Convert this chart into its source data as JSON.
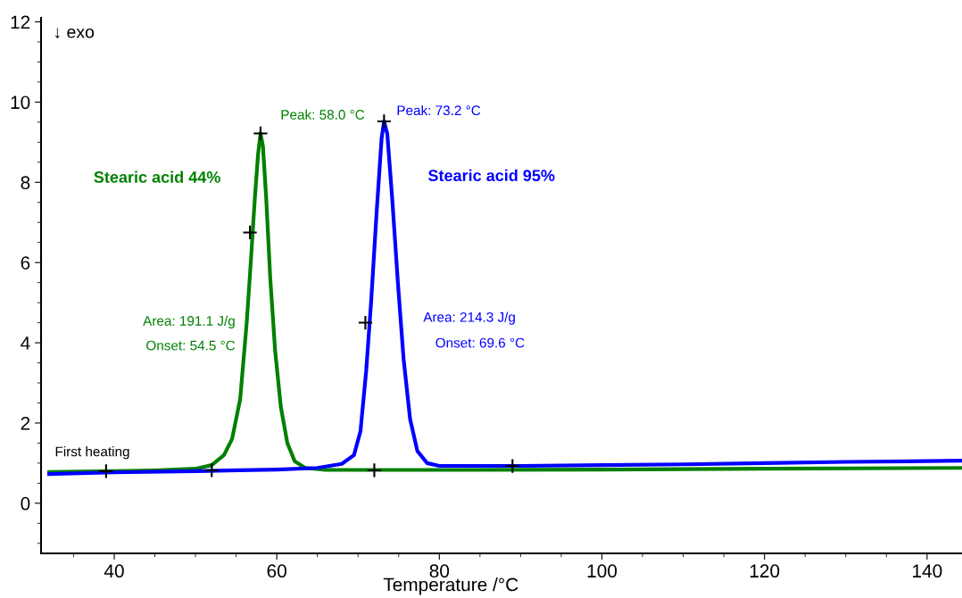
{
  "chart_data": {
    "type": "line",
    "xlabel": "Temperature /°C",
    "xlim": [
      31,
      144.3
    ],
    "ylim": [
      -1.25,
      12.1
    ],
    "xticks": [
      40,
      60,
      80,
      100,
      120,
      140
    ],
    "yticks": [
      0,
      2,
      4,
      6,
      8,
      10,
      12
    ],
    "grid": false,
    "legend": false,
    "series": [
      {
        "name": "Stearic acid 44%",
        "color": "#008000",
        "x": [
          32,
          40,
          45,
          50,
          52,
          53.5,
          54.5,
          55.5,
          56.3,
          56.8,
          57.3,
          57.7,
          58.0,
          58.3,
          58.7,
          59.2,
          59.8,
          60.5,
          61.3,
          62.2,
          63.5,
          66,
          80,
          100,
          120,
          144.3
        ],
        "values": [
          0.78,
          0.8,
          0.82,
          0.86,
          0.95,
          1.2,
          1.6,
          2.6,
          4.5,
          6.0,
          7.6,
          8.7,
          9.22,
          8.9,
          7.6,
          5.6,
          3.8,
          2.4,
          1.5,
          1.05,
          0.88,
          0.83,
          0.83,
          0.84,
          0.86,
          0.88
        ]
      },
      {
        "name": "Stearic acid 95%",
        "color": "#0000ff",
        "x": [
          32,
          40,
          50,
          60,
          65,
          68,
          69.5,
          70.3,
          71.0,
          71.6,
          72.3,
          72.9,
          73.2,
          73.6,
          74.2,
          74.9,
          75.6,
          76.4,
          77.3,
          78.5,
          80,
          90,
          100,
          110,
          120,
          130,
          144.3
        ],
        "values": [
          0.73,
          0.77,
          0.8,
          0.84,
          0.88,
          0.98,
          1.2,
          1.8,
          3.3,
          5.0,
          7.3,
          9.1,
          9.52,
          9.2,
          7.6,
          5.5,
          3.6,
          2.1,
          1.3,
          1.0,
          0.93,
          0.93,
          0.95,
          0.97,
          1.0,
          1.03,
          1.06
        ]
      },
      {
        "type": "scatter",
        "marker": "cross",
        "color": "#000000",
        "x": [
          39,
          52,
          56.7,
          58.0,
          72,
          70.9,
          73.2,
          89
        ],
        "values": [
          0.8,
          0.82,
          6.75,
          9.22,
          0.82,
          4.5,
          9.52,
          0.93
        ]
      }
    ],
    "annotations": [
      "↓ exo",
      "Peak: 58.0 °C",
      "Peak: 73.2 °C",
      "Area: 191.1 J/g",
      "Onset: 54.5 °C",
      "Area: 214.3 J/g",
      "Onset: 69.6 °C",
      "First heating"
    ]
  }
}
